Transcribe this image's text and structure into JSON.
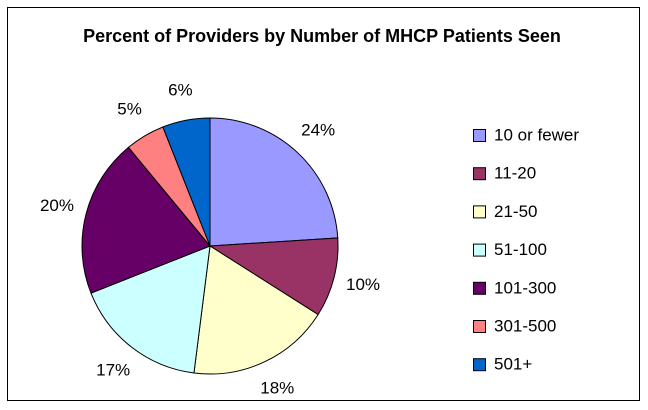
{
  "chart_data": {
    "type": "pie",
    "title": "Percent of Providers by Number of MHCP Patients Seen",
    "categories": [
      "10 or fewer",
      "11-20",
      "21-50",
      "51-100",
      "101-300",
      "301-500",
      "501+"
    ],
    "values": [
      24,
      10,
      18,
      17,
      20,
      5,
      6
    ],
    "value_labels": [
      "24%",
      "10%",
      "18%",
      "17%",
      "20%",
      "5%",
      "6%"
    ],
    "colors": [
      "#9999ff",
      "#993366",
      "#ffffcc",
      "#ccffff",
      "#660066",
      "#ff8080",
      "#0066cc"
    ],
    "legend": "right"
  }
}
